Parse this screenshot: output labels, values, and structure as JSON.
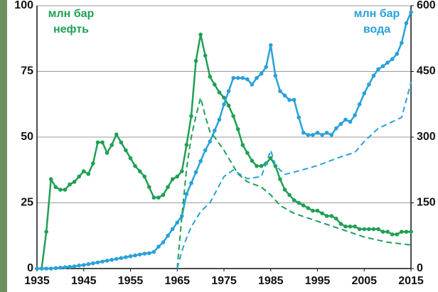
{
  "chart_data": {
    "type": "line",
    "ylabel": [
      "млн бар",
      "нефть"
    ],
    "y2label": [
      "млн бар",
      "вода"
    ],
    "xlim": [
      1935,
      2015
    ],
    "xticks": [
      1935,
      1945,
      1955,
      1965,
      1975,
      1985,
      1995,
      2005,
      2015
    ],
    "ylim": [
      0,
      100
    ],
    "yticks": [
      0,
      25,
      50,
      75,
      100
    ],
    "y2lim": [
      0,
      600
    ],
    "y2ticks": [
      0,
      150,
      300,
      450,
      600
    ],
    "grid": true,
    "series": [
      {
        "color": "#1fa055",
        "style": "solid",
        "markers": true,
        "x": [
          1935,
          1936,
          1937,
          1938,
          1939,
          1940,
          1941,
          1942,
          1943,
          1944,
          1945,
          1946,
          1947,
          1948,
          1949,
          1950,
          1951,
          1952,
          1953,
          1954,
          1955,
          1956,
          1957,
          1958,
          1959,
          1960,
          1961,
          1962,
          1963,
          1964,
          1965,
          1966,
          1967,
          1968,
          1969,
          1970,
          1971,
          1972,
          1973,
          1974,
          1975,
          1976,
          1977,
          1978,
          1979,
          1980,
          1981,
          1982,
          1983,
          1984,
          1985,
          1986,
          1987,
          1988,
          1989,
          1990,
          1991,
          1992,
          1993,
          1994,
          1995,
          1996,
          1997,
          1998,
          1999,
          2000,
          2001,
          2002,
          2003,
          2004,
          2005,
          2006,
          2007,
          2008,
          2009,
          2010,
          2011,
          2012,
          2013,
          2014,
          2015
        ],
        "values": [
          0,
          0,
          14,
          34,
          31,
          30,
          30,
          32,
          33,
          35,
          37,
          36,
          40,
          48,
          48,
          44,
          47,
          51,
          48,
          45,
          42,
          39,
          37,
          35,
          31,
          27,
          27,
          28,
          31,
          34,
          35,
          37,
          47,
          58,
          79,
          89,
          81,
          73,
          70,
          67,
          65,
          62,
          58,
          53,
          47,
          44,
          41,
          39,
          39,
          40,
          42,
          39,
          34,
          30,
          28,
          26,
          25,
          24,
          23,
          22,
          22,
          21,
          20,
          20,
          19,
          17,
          16,
          16,
          16,
          15,
          15,
          15,
          15,
          15,
          14,
          14,
          13,
          13,
          14,
          14,
          14
        ]
      },
      {
        "color": "#29a1d9",
        "style": "solid",
        "markers": true,
        "axis": "y2",
        "x": [
          1935,
          1936,
          1937,
          1938,
          1939,
          1940,
          1941,
          1942,
          1943,
          1944,
          1945,
          1946,
          1947,
          1948,
          1949,
          1950,
          1951,
          1952,
          1953,
          1954,
          1955,
          1956,
          1957,
          1958,
          1959,
          1960,
          1961,
          1962,
          1963,
          1964,
          1965,
          1966,
          1967,
          1968,
          1969,
          1970,
          1971,
          1972,
          1973,
          1974,
          1975,
          1976,
          1977,
          1978,
          1979,
          1980,
          1981,
          1982,
          1983,
          1984,
          1985,
          1986,
          1987,
          1988,
          1989,
          1990,
          1991,
          1992,
          1993,
          1994,
          1995,
          1996,
          1997,
          1998,
          1999,
          2000,
          2001,
          2002,
          2003,
          2004,
          2005,
          2006,
          2007,
          2008,
          2009,
          2010,
          2011,
          2012,
          2013,
          2014,
          2015
        ],
        "values": [
          0,
          0,
          0,
          0,
          1,
          2,
          3,
          4,
          5,
          7,
          8,
          10,
          12,
          14,
          16,
          18,
          20,
          22,
          24,
          26,
          28,
          30,
          32,
          34,
          35,
          38,
          50,
          60,
          75,
          90,
          105,
          120,
          170,
          195,
          220,
          245,
          270,
          290,
          315,
          340,
          375,
          405,
          435,
          435,
          435,
          432,
          420,
          435,
          445,
          460,
          510,
          440,
          405,
          395,
          385,
          385,
          345,
          310,
          305,
          305,
          310,
          305,
          310,
          305,
          320,
          330,
          340,
          335,
          350,
          375,
          400,
          420,
          440,
          455,
          462,
          470,
          478,
          490,
          515,
          560,
          585
        ]
      },
      {
        "color": "#1fa055",
        "style": "dashed",
        "markers": false,
        "x": [
          1965,
          1966,
          1967,
          1968,
          1969,
          1970,
          1971,
          1972,
          1973,
          1975,
          1978,
          1980,
          1983,
          1985,
          1987,
          1990,
          1995,
          2000,
          2005,
          2010,
          2015
        ],
        "values": [
          0,
          20,
          38,
          50,
          58,
          65,
          58,
          52,
          50,
          45,
          36,
          33,
          31,
          28,
          24,
          21,
          18,
          15,
          12,
          10,
          9
        ]
      },
      {
        "color": "#29a1d9",
        "style": "dashed",
        "markers": false,
        "axis": "y2",
        "x": [
          1965,
          1966,
          1967,
          1968,
          1970,
          1972,
          1975,
          1977,
          1980,
          1983,
          1985,
          1986,
          1988,
          1990,
          1995,
          2000,
          2003,
          2005,
          2008,
          2010,
          2013,
          2015
        ],
        "values": [
          0,
          40,
          70,
          95,
          130,
          150,
          210,
          225,
          205,
          210,
          270,
          235,
          215,
          220,
          235,
          255,
          265,
          290,
          320,
          330,
          345,
          425
        ]
      }
    ]
  }
}
